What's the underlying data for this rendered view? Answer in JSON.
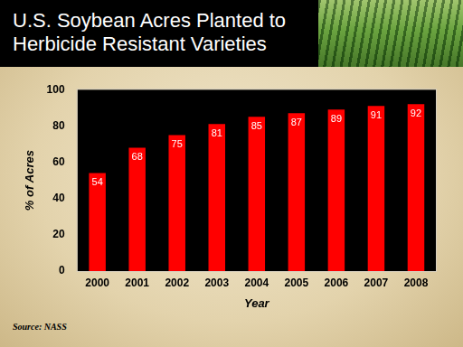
{
  "chart_data": {
    "type": "bar",
    "title": "U.S. Soybean Acres Planted to Herbicide Resistant Varieties",
    "x_label": "Year",
    "y_label": "% of Acres",
    "source": "Source: NASS",
    "categories": [
      "2000",
      "2001",
      "2002",
      "2003",
      "2004",
      "2005",
      "2006",
      "2007",
      "2008"
    ],
    "values": [
      54,
      68,
      75,
      81,
      85,
      87,
      89,
      91,
      92
    ],
    "color": "#ff0000",
    "ylim": [
      0,
      100
    ],
    "yticks": [
      0,
      20,
      40,
      60,
      80,
      100
    ],
    "grid": false,
    "data_labels": true
  }
}
